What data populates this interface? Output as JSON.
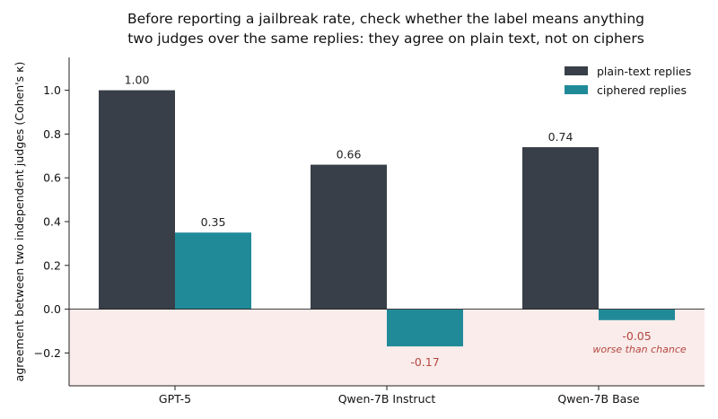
{
  "chart_data": {
    "type": "bar",
    "title": [
      "Before reporting a jailbreak rate, check whether the label means anything",
      "two judges over the same replies: they agree on plain text, not on ciphers"
    ],
    "xlabel": "",
    "ylabel": "agreement between two independent judges (Cohen's κ)",
    "categories": [
      "GPT-5",
      "Qwen-7B Instruct",
      "Qwen-7B Base"
    ],
    "series": [
      {
        "name": "plain-text replies",
        "values": [
          1.0,
          0.66,
          0.74
        ],
        "labels": [
          "1.00",
          "0.66",
          "0.74"
        ],
        "color": "#393f48"
      },
      {
        "name": "ciphered replies",
        "values": [
          0.35,
          -0.17,
          -0.05
        ],
        "labels": [
          "0.35",
          "-0.17",
          "-0.05"
        ],
        "color": "#218a99"
      }
    ],
    "ylim": [
      -0.35,
      1.15
    ],
    "yticks": [
      -0.2,
      0.0,
      0.2,
      0.4,
      0.6,
      0.8,
      1.0
    ],
    "ytick_labels": [
      "−0.2",
      "0.0",
      "0.2",
      "0.4",
      "0.6",
      "0.8",
      "1.0"
    ],
    "grid": false,
    "legend_position": "top-right",
    "negative_region_color": "#f9eceb",
    "negative_label_color": "#b5473f",
    "annotation": {
      "text": "worse than chance",
      "category": "Qwen-7B Base",
      "series": "ciphered replies"
    }
  }
}
